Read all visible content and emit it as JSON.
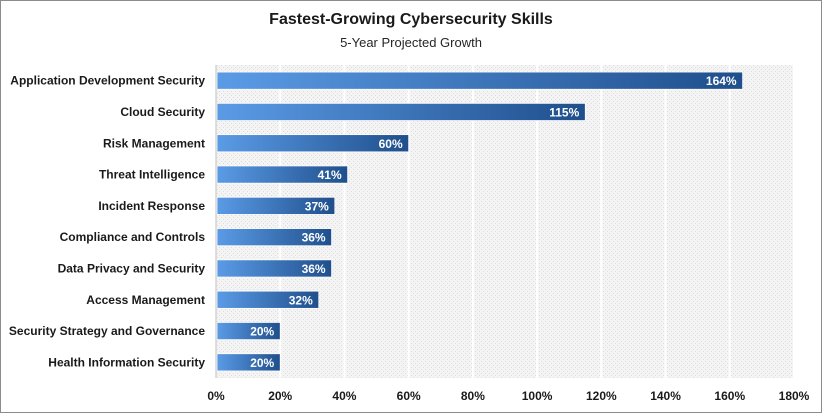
{
  "chart_data": {
    "type": "bar",
    "orientation": "horizontal",
    "title": "Fastest-Growing Cybersecurity Skills",
    "subtitle": "5-Year Projected Growth",
    "categories": [
      "Application Development Security",
      "Cloud Security",
      "Risk Management",
      "Threat Intelligence",
      "Incident Response",
      "Compliance and Controls",
      "Data Privacy and Security",
      "Access Management",
      "Security Strategy and Governance",
      "Health Information Security"
    ],
    "values": [
      164,
      115,
      60,
      41,
      37,
      36,
      36,
      32,
      20,
      20
    ],
    "value_labels": [
      "164%",
      "115%",
      "60%",
      "41%",
      "37%",
      "36%",
      "36%",
      "32%",
      "20%",
      "20%"
    ],
    "xlim": [
      0,
      180
    ],
    "xticks": [
      0,
      20,
      40,
      60,
      80,
      100,
      120,
      140,
      160,
      180
    ],
    "xtick_labels": [
      "0%",
      "20%",
      "40%",
      "60%",
      "80%",
      "100%",
      "120%",
      "140%",
      "160%",
      "180%"
    ],
    "xlabel": "",
    "ylabel": "",
    "grid": true,
    "legend": "none",
    "colors": {
      "bar_light": "#5b9be6",
      "bar_dark": "#1f4f8c",
      "plot_background": "#f2f2f2",
      "gridline": "#ffffff"
    }
  }
}
